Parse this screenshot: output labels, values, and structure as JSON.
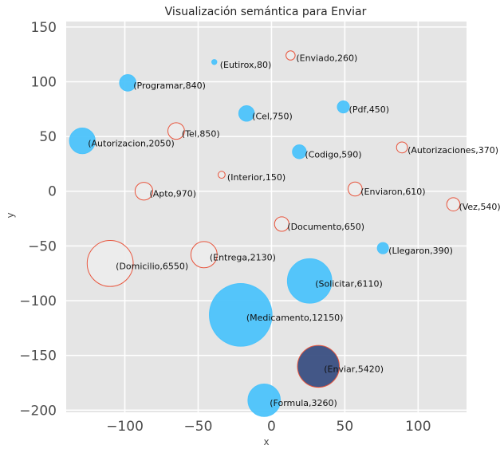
{
  "chart_data": {
    "type": "scatter",
    "title": "Visualización semántica para Enviar",
    "xlabel": "x",
    "ylabel": "y",
    "xlim": [
      -140,
      133
    ],
    "ylim": [
      -202,
      155
    ],
    "xticks": [
      -100,
      -50,
      0,
      50,
      100
    ],
    "yticks": [
      -200,
      -150,
      -100,
      -50,
      0,
      50,
      100,
      150
    ],
    "xtick_labels": [
      "−100",
      "−50",
      "0",
      "50",
      "100"
    ],
    "ytick_labels": [
      "−200",
      "−150",
      "−100",
      "−50",
      "0",
      "50",
      "100",
      "150"
    ],
    "grid": true,
    "legend": false,
    "colors": {
      "background": "#e5e5e5",
      "grid": "#ffffff",
      "filled_bubble": "#4cc3fb",
      "empty_bubble": "#ececec",
      "bubble_edge": "#e8553d",
      "highlight_bubble": "#3a4f82"
    },
    "points": [
      {
        "label": "(Eutirox,80)",
        "x": -39,
        "y": 118,
        "size": 80,
        "style": "filled"
      },
      {
        "label": "(Enviado,260)",
        "x": 13,
        "y": 124,
        "size": 260,
        "style": "empty"
      },
      {
        "label": "(Programar,840)",
        "x": -98,
        "y": 99,
        "size": 840,
        "style": "filled"
      },
      {
        "label": "(Pdf,450)",
        "x": 49,
        "y": 77,
        "size": 450,
        "style": "filled"
      },
      {
        "label": "(Cel,750)",
        "x": -17,
        "y": 71,
        "size": 750,
        "style": "filled"
      },
      {
        "label": "(Tel,850)",
        "x": -65,
        "y": 55,
        "size": 850,
        "style": "empty"
      },
      {
        "label": "(Autorizacion,2050)",
        "x": -129,
        "y": 46,
        "size": 2050,
        "style": "filled"
      },
      {
        "label": "(Autorizaciones,370)",
        "x": 89,
        "y": 40,
        "size": 370,
        "style": "empty"
      },
      {
        "label": "(Codigo,590)",
        "x": 19,
        "y": 36,
        "size": 590,
        "style": "filled"
      },
      {
        "label": "(Interior,150)",
        "x": -34,
        "y": 15,
        "size": 150,
        "style": "empty"
      },
      {
        "label": "(Apto,970)",
        "x": -87,
        "y": 0,
        "size": 970,
        "style": "empty"
      },
      {
        "label": "(Enviaron,610)",
        "x": 57,
        "y": 2,
        "size": 610,
        "style": "empty"
      },
      {
        "label": "(Vez,540)",
        "x": 124,
        "y": -12,
        "size": 540,
        "style": "empty"
      },
      {
        "label": "(Documento,650)",
        "x": 7,
        "y": -30,
        "size": 650,
        "style": "empty"
      },
      {
        "label": "(Llegaron,390)",
        "x": 76,
        "y": -52,
        "size": 390,
        "style": "filled"
      },
      {
        "label": "(Domicilio,6550)",
        "x": -110,
        "y": -66,
        "size": 6550,
        "style": "empty"
      },
      {
        "label": "(Entrega,2130)",
        "x": -46,
        "y": -58,
        "size": 2130,
        "style": "empty"
      },
      {
        "label": "(Solicitar,6110)",
        "x": 26,
        "y": -82,
        "size": 6110,
        "style": "filled"
      },
      {
        "label": "(Medicamento,12150)",
        "x": -21,
        "y": -113,
        "size": 12150,
        "style": "filled"
      },
      {
        "label": "(Enviar,5420)",
        "x": 32,
        "y": -160,
        "size": 5420,
        "style": "highlight"
      },
      {
        "label": "(Formula,3260)",
        "x": -5,
        "y": -191,
        "size": 3260,
        "style": "filled"
      }
    ]
  }
}
